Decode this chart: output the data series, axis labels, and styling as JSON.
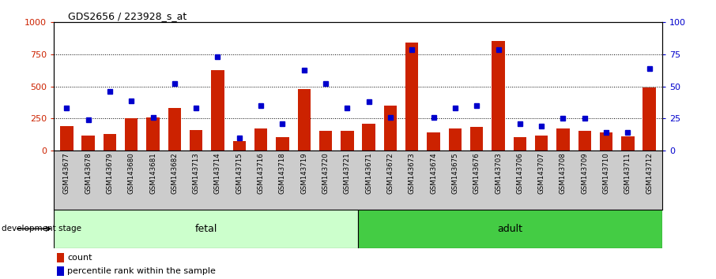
{
  "title": "GDS2656 / 223928_s_at",
  "samples": [
    "GSM143677",
    "GSM143678",
    "GSM143679",
    "GSM143680",
    "GSM143681",
    "GSM143682",
    "GSM143713",
    "GSM143714",
    "GSM143715",
    "GSM143716",
    "GSM143718",
    "GSM143719",
    "GSM143720",
    "GSM143721",
    "GSM143671",
    "GSM143672",
    "GSM143673",
    "GSM143674",
    "GSM143675",
    "GSM143676",
    "GSM143703",
    "GSM143706",
    "GSM143707",
    "GSM143708",
    "GSM143709",
    "GSM143710",
    "GSM143711",
    "GSM143712"
  ],
  "counts": [
    190,
    120,
    130,
    255,
    260,
    330,
    160,
    625,
    75,
    175,
    105,
    480,
    155,
    155,
    210,
    350,
    840,
    140,
    170,
    185,
    855,
    105,
    115,
    170,
    155,
    145,
    110,
    490
  ],
  "percentile": [
    33,
    24,
    46,
    39,
    26,
    52,
    33,
    73,
    10,
    35,
    21,
    63,
    52,
    33,
    38,
    26,
    79,
    26,
    33,
    35,
    79,
    21,
    19,
    25,
    25,
    14,
    14,
    64
  ],
  "fetal_count": 14,
  "adult_count": 14,
  "bar_color": "#cc2200",
  "dot_color": "#0000cc",
  "fetal_bg": "#ccffcc",
  "adult_bg": "#44cc44",
  "xticklabel_bg": "#cccccc",
  "left_axis_color": "#cc2200",
  "right_axis_color": "#0000cc",
  "ylim_left": [
    0,
    1000
  ],
  "ylim_right": [
    0,
    100
  ],
  "yticks_left": [
    0,
    250,
    500,
    750,
    1000
  ],
  "yticks_right": [
    0,
    25,
    50,
    75,
    100
  ],
  "gridlines": [
    250,
    500,
    750
  ]
}
